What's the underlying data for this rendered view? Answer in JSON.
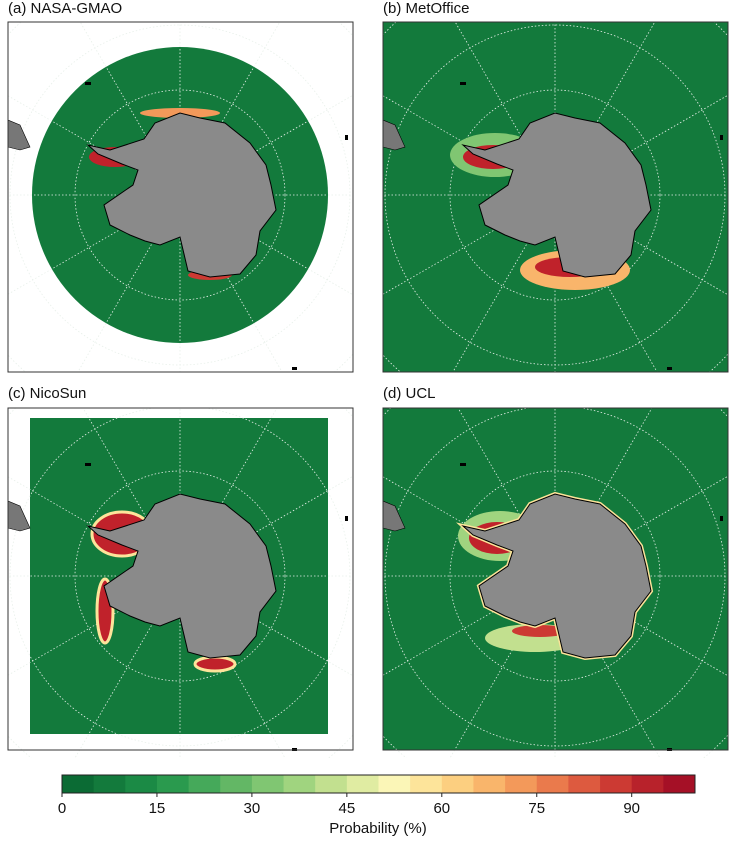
{
  "panels": [
    {
      "label": "(a) NASA-GMAO"
    },
    {
      "label": "(b) MetOffice"
    },
    {
      "label": "(c) NicoSun"
    },
    {
      "label": "(d) UCL"
    }
  ],
  "colorbar": {
    "label": "Probability (%)",
    "lim": [
      0,
      100
    ],
    "ticks": [
      0,
      15,
      30,
      45,
      60,
      75,
      90
    ],
    "colors": [
      "#0b6b34",
      "#137a3c",
      "#1b8a45",
      "#2a9a4e",
      "#45a95a",
      "#63b765",
      "#80c672",
      "#a0d47f",
      "#c2e08f",
      "#e0eca2",
      "#fbf6b7",
      "#fde49a",
      "#fccf80",
      "#f9b56b",
      "#f3995a",
      "#ea7a4c",
      "#dd5a3f",
      "#cc3a33",
      "#b8222b",
      "#a51026"
    ]
  }
}
